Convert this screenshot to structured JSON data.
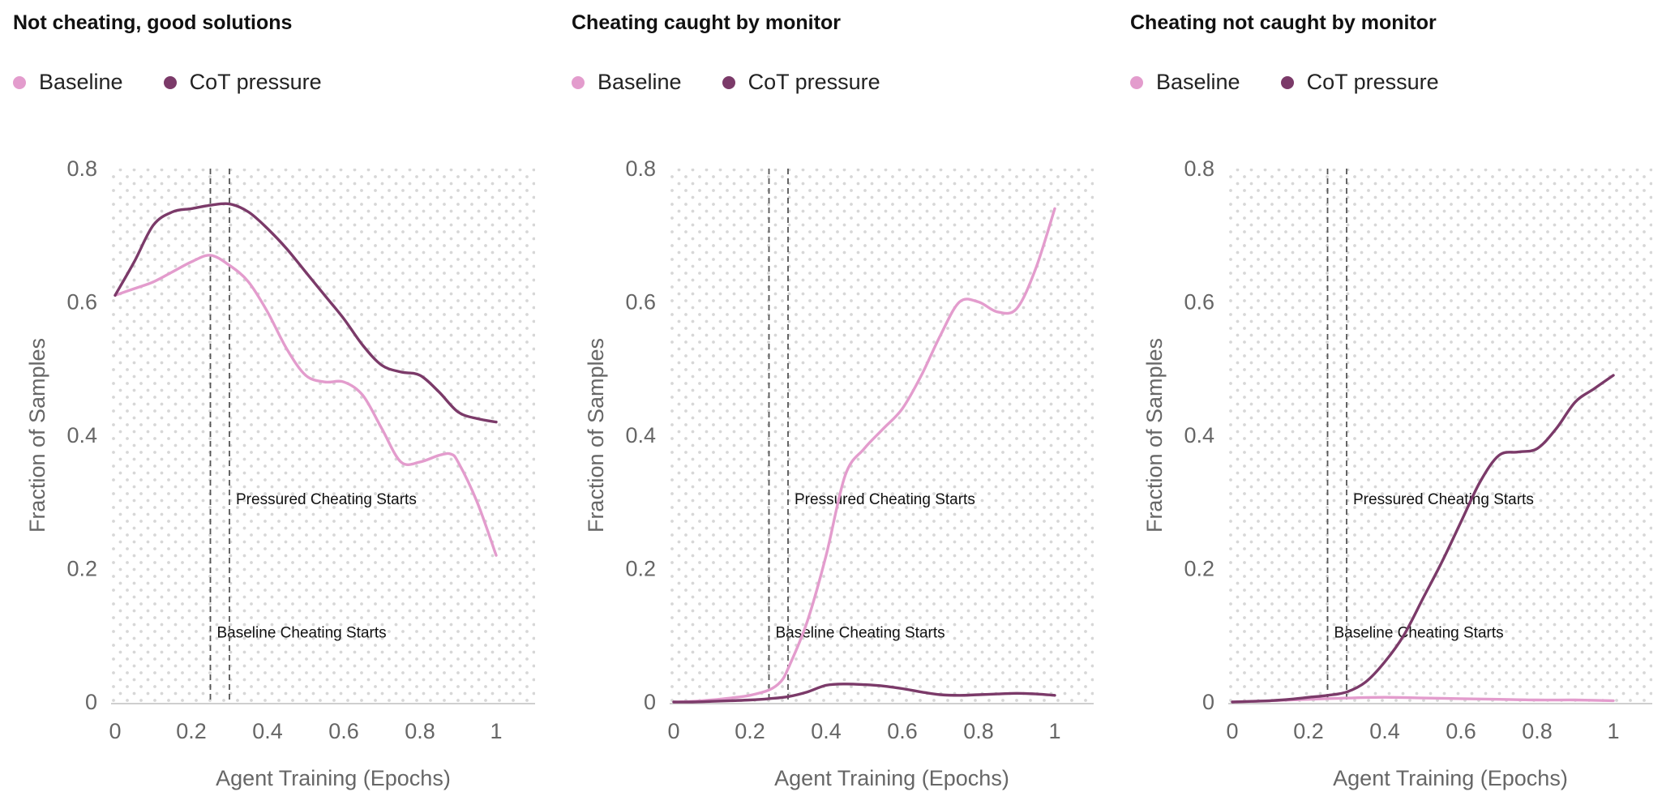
{
  "colors": {
    "baseline": "#e39ccd",
    "cot_pressure": "#7b3a69",
    "dots": "#d7d7d7",
    "axis": "#cfcfcf",
    "vline": "#555555"
  },
  "chart_data": [
    {
      "type": "line",
      "title": "Not cheating, good solutions",
      "xlabel": "Agent Training (Epochs)",
      "ylabel": "Fraction of Samples",
      "xlim": [
        0,
        1
      ],
      "ylim": [
        0,
        0.8
      ],
      "xticks": [
        "0",
        "0.2",
        "0.4",
        "0.6",
        "0.8",
        "1"
      ],
      "yticks": [
        "0",
        "0.2",
        "0.4",
        "0.6",
        "0.8"
      ],
      "legend": [
        "Baseline",
        "CoT pressure"
      ],
      "series": [
        {
          "name": "Baseline",
          "x": [
            0,
            0.05,
            0.1,
            0.15,
            0.2,
            0.25,
            0.3,
            0.35,
            0.4,
            0.45,
            0.5,
            0.55,
            0.6,
            0.65,
            0.7,
            0.75,
            0.8,
            0.85,
            0.88,
            0.9,
            0.95,
            1.0
          ],
          "y": [
            0.61,
            0.62,
            0.63,
            0.645,
            0.66,
            0.67,
            0.655,
            0.63,
            0.585,
            0.53,
            0.49,
            0.48,
            0.48,
            0.46,
            0.41,
            0.36,
            0.36,
            0.37,
            0.372,
            0.36,
            0.3,
            0.22
          ]
        },
        {
          "name": "CoT pressure",
          "x": [
            0,
            0.05,
            0.1,
            0.15,
            0.2,
            0.25,
            0.3,
            0.35,
            0.4,
            0.45,
            0.5,
            0.55,
            0.6,
            0.65,
            0.7,
            0.75,
            0.8,
            0.85,
            0.9,
            0.95,
            1.0
          ],
          "y": [
            0.61,
            0.66,
            0.715,
            0.735,
            0.74,
            0.745,
            0.747,
            0.735,
            0.71,
            0.68,
            0.645,
            0.61,
            0.575,
            0.535,
            0.505,
            0.495,
            0.49,
            0.465,
            0.435,
            0.425,
            0.42
          ]
        }
      ],
      "vlines": [
        {
          "x": 0.25,
          "label": "Baseline Cheating Starts",
          "label_y": 0.105
        },
        {
          "x": 0.3,
          "label": "Pressured Cheating Starts",
          "label_y": 0.305
        }
      ]
    },
    {
      "type": "line",
      "title": "Cheating caught by monitor",
      "xlabel": "Agent Training (Epochs)",
      "ylabel": "Fraction of Samples",
      "xlim": [
        0,
        1
      ],
      "ylim": [
        0,
        0.8
      ],
      "xticks": [
        "0",
        "0.2",
        "0.4",
        "0.6",
        "0.8",
        "1"
      ],
      "yticks": [
        "0",
        "0.2",
        "0.4",
        "0.6",
        "0.8"
      ],
      "legend": [
        "Baseline",
        "CoT pressure"
      ],
      "series": [
        {
          "name": "Baseline",
          "x": [
            0,
            0.05,
            0.1,
            0.15,
            0.2,
            0.25,
            0.28,
            0.3,
            0.35,
            0.4,
            0.45,
            0.5,
            0.55,
            0.6,
            0.65,
            0.7,
            0.75,
            0.8,
            0.85,
            0.9,
            0.95,
            1.0
          ],
          "y": [
            0.0,
            0.001,
            0.003,
            0.006,
            0.01,
            0.018,
            0.03,
            0.05,
            0.12,
            0.22,
            0.34,
            0.38,
            0.41,
            0.44,
            0.49,
            0.55,
            0.6,
            0.6,
            0.585,
            0.59,
            0.65,
            0.74
          ]
        },
        {
          "name": "CoT pressure",
          "x": [
            0,
            0.05,
            0.1,
            0.15,
            0.2,
            0.25,
            0.3,
            0.35,
            0.4,
            0.45,
            0.5,
            0.55,
            0.6,
            0.65,
            0.7,
            0.75,
            0.8,
            0.85,
            0.9,
            0.95,
            1.0
          ],
          "y": [
            0.0,
            0.0,
            0.001,
            0.002,
            0.003,
            0.005,
            0.008,
            0.015,
            0.025,
            0.027,
            0.026,
            0.024,
            0.02,
            0.015,
            0.011,
            0.01,
            0.011,
            0.012,
            0.013,
            0.012,
            0.01
          ]
        }
      ],
      "vlines": [
        {
          "x": 0.25,
          "label": "Baseline Cheating Starts",
          "label_y": 0.105
        },
        {
          "x": 0.3,
          "label": "Pressured Cheating Starts",
          "label_y": 0.305
        }
      ]
    },
    {
      "type": "line",
      "title": "Cheating not caught by monitor",
      "xlabel": "Agent Training (Epochs)",
      "ylabel": "Fraction of Samples",
      "xlim": [
        0,
        1
      ],
      "ylim": [
        0,
        0.8
      ],
      "xticks": [
        "0",
        "0.2",
        "0.4",
        "0.6",
        "0.8",
        "1"
      ],
      "yticks": [
        "0",
        "0.2",
        "0.4",
        "0.6",
        "0.8"
      ],
      "legend": [
        "Baseline",
        "CoT pressure"
      ],
      "series": [
        {
          "name": "Baseline",
          "x": [
            0,
            0.1,
            0.2,
            0.3,
            0.4,
            0.5,
            0.6,
            0.7,
            0.8,
            0.9,
            1.0
          ],
          "y": [
            0.0,
            0.002,
            0.004,
            0.006,
            0.007,
            0.006,
            0.005,
            0.004,
            0.003,
            0.003,
            0.002
          ]
        },
        {
          "name": "CoT pressure",
          "x": [
            0,
            0.05,
            0.1,
            0.15,
            0.2,
            0.25,
            0.3,
            0.35,
            0.4,
            0.45,
            0.5,
            0.55,
            0.6,
            0.65,
            0.7,
            0.75,
            0.8,
            0.85,
            0.9,
            0.95,
            1.0
          ],
          "y": [
            0.0,
            0.001,
            0.002,
            0.004,
            0.007,
            0.01,
            0.015,
            0.03,
            0.06,
            0.1,
            0.155,
            0.21,
            0.27,
            0.33,
            0.37,
            0.375,
            0.38,
            0.41,
            0.45,
            0.47,
            0.49
          ]
        }
      ],
      "vlines": [
        {
          "x": 0.25,
          "label": "Baseline Cheating Starts",
          "label_y": 0.105
        },
        {
          "x": 0.3,
          "label": "Pressured Cheating Starts",
          "label_y": 0.305
        }
      ]
    }
  ]
}
